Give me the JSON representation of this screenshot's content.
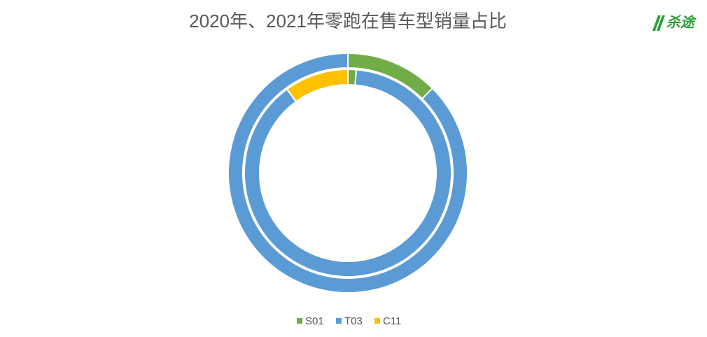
{
  "chart_data": {
    "type": "donut",
    "title": "2020年、2021年零跑在售车型销量占比",
    "logo": "杀途",
    "categories": [
      "S01",
      "T03",
      "C11"
    ],
    "colors": [
      "#70ad47",
      "#5b9bd5",
      "#ffc000"
    ],
    "rings": [
      {
        "values": [
          1.3,
          88.7,
          10
        ]
      },
      {
        "values": [
          12.5,
          87.5,
          0
        ]
      }
    ],
    "legend": "bottom"
  }
}
